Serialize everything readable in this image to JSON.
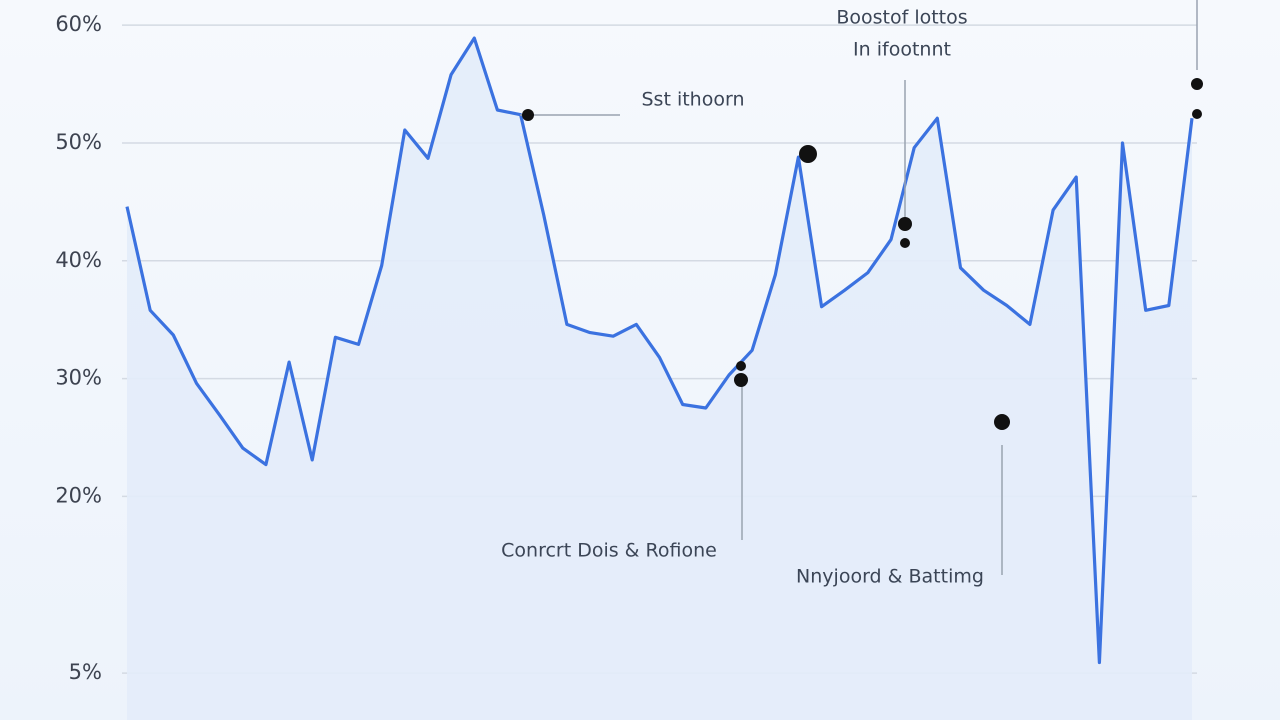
{
  "chart_data": {
    "type": "line",
    "color": "#3b72e0",
    "fill": "#e3ecf9",
    "grid": true,
    "ylim": [
      0,
      62
    ],
    "yticks": [
      {
        "value": 60,
        "label": "60%"
      },
      {
        "value": 50,
        "label": "50%"
      },
      {
        "value": 40,
        "label": "40%"
      },
      {
        "value": 30,
        "label": "30%"
      },
      {
        "value": 20,
        "label": "20%"
      },
      {
        "value": 5,
        "label": "5%"
      }
    ],
    "values": [
      44.6,
      35.8,
      33.7,
      29.6,
      26.9,
      24.1,
      22.7,
      31.4,
      23.1,
      33.5,
      32.9,
      39.6,
      51.1,
      48.7,
      55.8,
      58.9,
      52.8,
      52.4,
      43.9,
      34.6,
      33.9,
      33.6,
      34.6,
      31.8,
      27.8,
      27.5,
      30.3,
      32.4,
      38.8,
      48.8,
      36.1,
      37.5,
      39.0,
      41.8,
      49.6,
      52.1,
      39.4,
      37.5,
      36.2,
      34.6,
      44.3,
      47.1,
      5.9,
      50.0,
      35.8,
      36.2,
      52.1
    ],
    "annotations": [
      "Boostof lottos",
      "In ifootnnt",
      "Sst ithoorn",
      "Conrcrt Dois & Rofione",
      "Nnyjoord & Battimg"
    ]
  }
}
